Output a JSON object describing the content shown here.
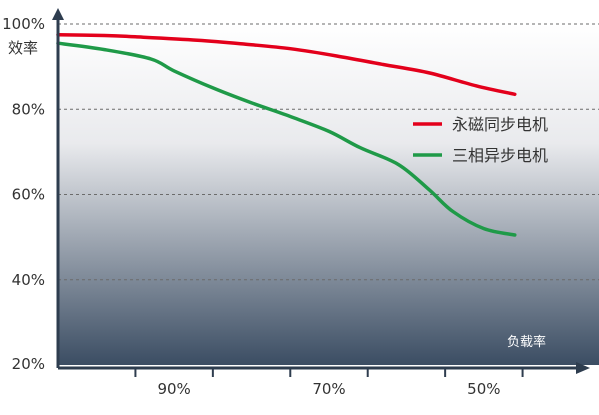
{
  "chart_data": {
    "type": "line",
    "title": "",
    "ylabel": "效率",
    "xlabel": "负载率",
    "y_ticks": [
      "100%",
      "80%",
      "60%",
      "40%",
      "20%"
    ],
    "x_ticks": [
      "90%",
      "70%",
      "50%"
    ],
    "ylim": [
      20,
      100
    ],
    "x_direction": "decreasing",
    "x_domain": [
      100,
      30
    ],
    "grid": "horizontal dashed",
    "legend_position": "right",
    "series": [
      {
        "name": "永磁同步电机",
        "color": "#e3001b",
        "points": [
          [
            100,
            97.5
          ],
          [
            94,
            97.3
          ],
          [
            90,
            97.0
          ],
          [
            82,
            96.2
          ],
          [
            76,
            95.3
          ],
          [
            70,
            94.2
          ],
          [
            64,
            92.5
          ],
          [
            58,
            90.5
          ],
          [
            52,
            88.5
          ],
          [
            46,
            85.5
          ],
          [
            41,
            83.5
          ]
        ]
      },
      {
        "name": "三相异步电机",
        "color": "#1f9a48",
        "points": [
          [
            100,
            95.5
          ],
          [
            94,
            94.0
          ],
          [
            88,
            91.8
          ],
          [
            85,
            89.0
          ],
          [
            80,
            85.0
          ],
          [
            75,
            81.5
          ],
          [
            70,
            78.3
          ],
          [
            65,
            74.8
          ],
          [
            61,
            71.0
          ],
          [
            56,
            67.0
          ],
          [
            52,
            61.0
          ],
          [
            49,
            56.0
          ],
          [
            45,
            52.0
          ],
          [
            41,
            50.5
          ]
        ]
      }
    ],
    "colors": {
      "axis": "#2e3d4f",
      "grid": "#6b6b6b",
      "bg_top": "#ffffff",
      "bg_bottom": "#3b4d63",
      "xlabel_color": "#ffffff"
    }
  }
}
